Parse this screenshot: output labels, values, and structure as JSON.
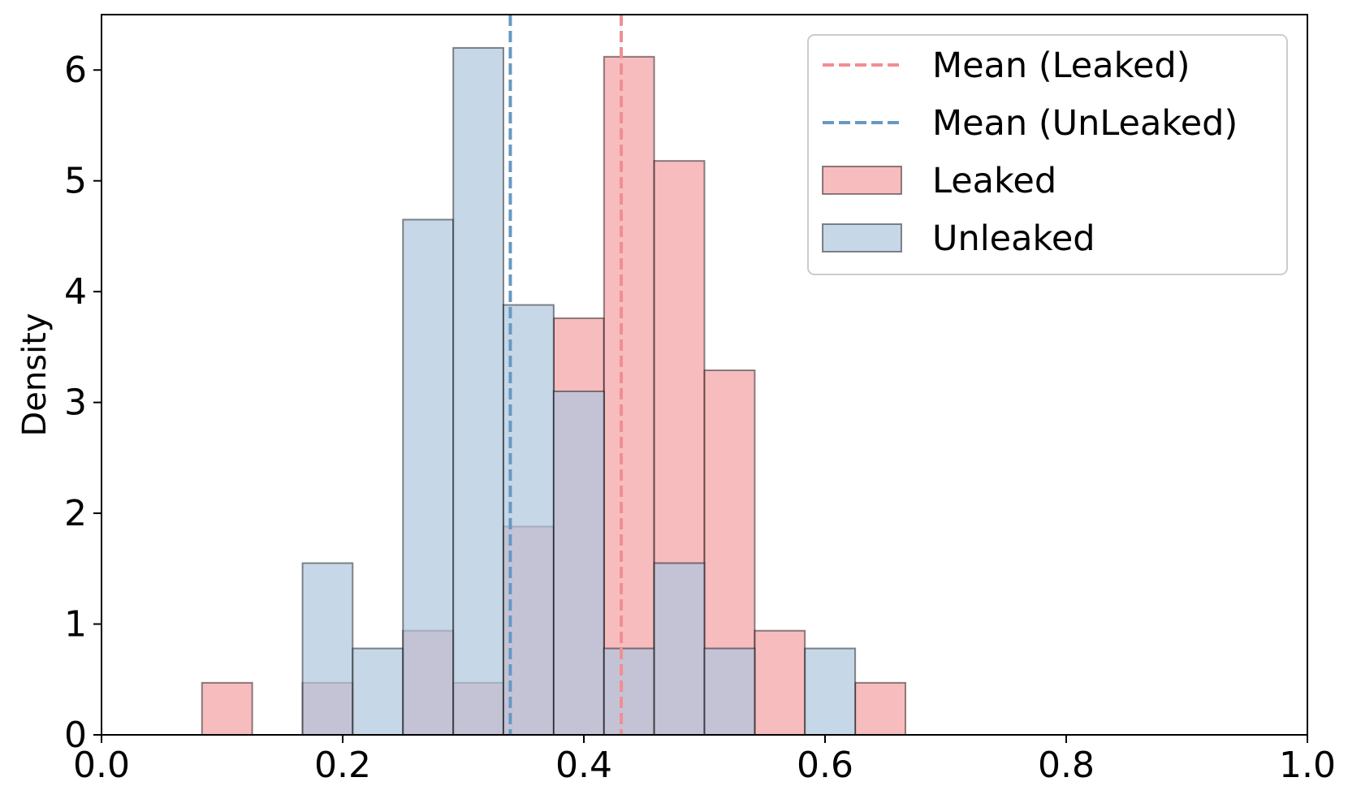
{
  "chart_data": {
    "type": "histogram",
    "xlabel": "",
    "ylabel": "Density",
    "xlim": [
      0.0,
      1.0
    ],
    "ylim": [
      0,
      6.5
    ],
    "x_ticks": [
      "0.0",
      "0.2",
      "0.4",
      "0.6",
      "0.8",
      "1.0"
    ],
    "y_ticks": [
      "0",
      "1",
      "2",
      "3",
      "4",
      "5",
      "6"
    ],
    "x_tick_values": [
      0.0,
      0.2,
      0.4,
      0.6,
      0.8,
      1.0
    ],
    "y_tick_values": [
      0,
      1,
      2,
      3,
      4,
      5,
      6
    ],
    "grid": false,
    "legend_position": "upper right",
    "bins": [
      0.0833,
      0.125,
      0.1667,
      0.2083,
      0.25,
      0.2917,
      0.3333,
      0.375,
      0.4167,
      0.4583,
      0.5,
      0.5417,
      0.5833,
      0.625,
      0.6667
    ],
    "series": [
      {
        "name": "Leaked",
        "color": "#f4a6a8",
        "values": [
          0.47,
          0,
          0.47,
          0,
          0.94,
          0.47,
          1.88,
          3.76,
          6.12,
          5.18,
          3.29,
          0.94,
          0,
          0.47
        ]
      },
      {
        "name": "Unleaked",
        "color": "#aec6de",
        "values": [
          0,
          0,
          1.55,
          0.78,
          4.65,
          6.2,
          3.88,
          3.1,
          0.78,
          1.55,
          0.78,
          0,
          0.78,
          0
        ]
      }
    ],
    "mean_lines": [
      {
        "name": "Mean (Leaked)",
        "x": 0.431,
        "color": "#f08e93"
      },
      {
        "name": "Mean (UnLeaked)",
        "x": 0.339,
        "color": "#6699c4"
      }
    ],
    "legend": [
      "Mean (Leaked)",
      "Mean (UnLeaked)",
      "Leaked",
      "Unleaked"
    ]
  }
}
